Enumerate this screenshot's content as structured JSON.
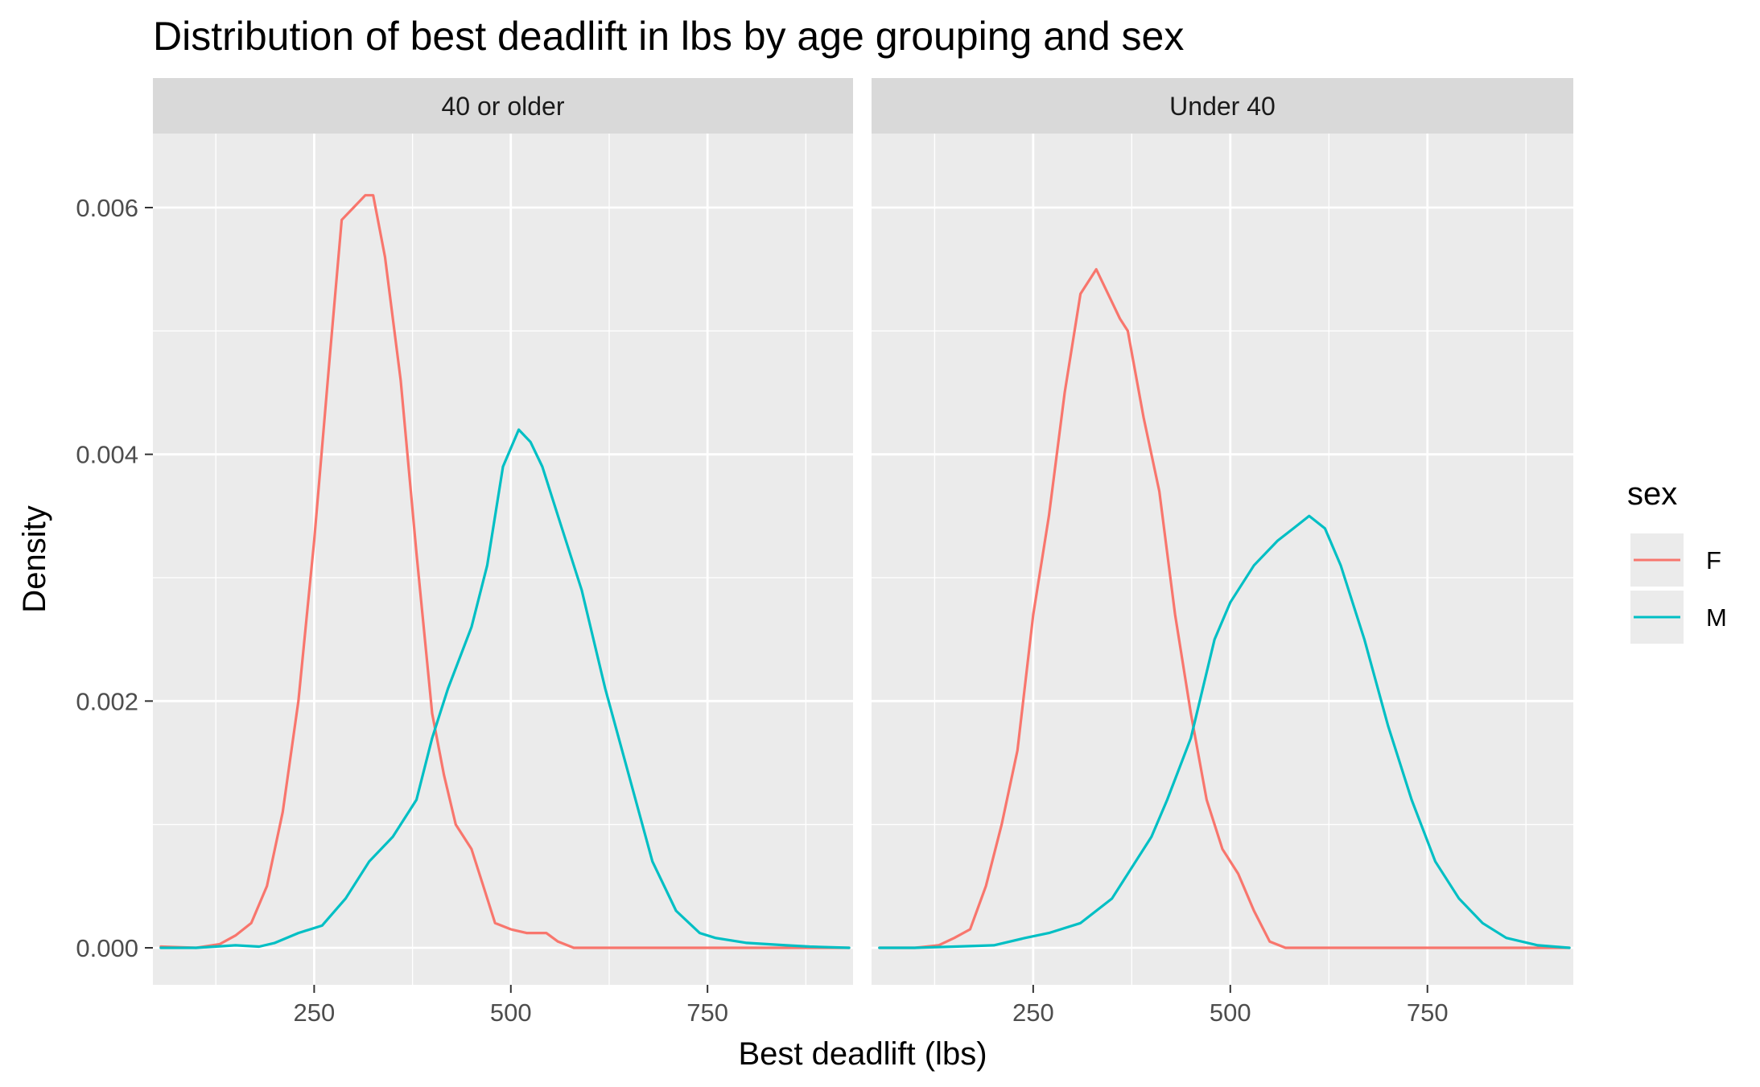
{
  "chart_data": {
    "type": "line",
    "subtype": "density",
    "title": "Distribution of best deadlift in lbs by age grouping and sex",
    "xlabel": "Best deadlift (lbs)",
    "ylabel": "Density",
    "xlim": [
      45,
      935
    ],
    "ylim": [
      -0.0003,
      0.0066
    ],
    "x_ticks": [
      250,
      500,
      750
    ],
    "x_tick_labels": [
      "250",
      "500",
      "750"
    ],
    "y_ticks": [
      0,
      0.002,
      0.004,
      0.006
    ],
    "y_tick_labels": [
      "0.000",
      "0.002",
      "0.004",
      "0.006"
    ],
    "grid": true,
    "legend": {
      "title": "sex",
      "position": "right",
      "entries": [
        "F",
        "M"
      ]
    },
    "colors": {
      "F": "#F8766D",
      "M": "#00BFC4"
    },
    "facets": [
      {
        "label": "40 or older",
        "series": [
          {
            "name": "F",
            "x": [
              55,
              100,
              130,
              150,
              170,
              190,
              210,
              230,
              250,
              270,
              285,
              300,
              315,
              325,
              340,
              360,
              380,
              400,
              415,
              430,
              450,
              465,
              480,
              500,
              520,
              545,
              560,
              580,
              650,
              750,
              850,
              930
            ],
            "y": [
              1e-05,
              0.0,
              3e-05,
              0.0001,
              0.0002,
              0.0005,
              0.0011,
              0.002,
              0.0033,
              0.0048,
              0.0059,
              0.006,
              0.0061,
              0.0061,
              0.0056,
              0.0046,
              0.0032,
              0.0019,
              0.0014,
              0.001,
              0.0008,
              0.0005,
              0.0002,
              0.00015,
              0.00012,
              0.00012,
              5e-05,
              0.0,
              0.0,
              0.0,
              0.0,
              0.0
            ]
          },
          {
            "name": "M",
            "x": [
              55,
              100,
              150,
              180,
              200,
              230,
              260,
              290,
              320,
              350,
              380,
              400,
              420,
              450,
              470,
              490,
              510,
              525,
              540,
              560,
              590,
              620,
              650,
              680,
              710,
              740,
              760,
              800,
              850,
              880,
              930
            ],
            "y": [
              0.0,
              0.0,
              2e-05,
              1e-05,
              4e-05,
              0.00012,
              0.00018,
              0.0004,
              0.0007,
              0.0009,
              0.0012,
              0.0017,
              0.0021,
              0.0026,
              0.0031,
              0.0039,
              0.0042,
              0.0041,
              0.0039,
              0.0035,
              0.0029,
              0.0021,
              0.0014,
              0.0007,
              0.0003,
              0.00012,
              8e-05,
              4e-05,
              2e-05,
              1e-05,
              0.0
            ]
          }
        ]
      },
      {
        "label": "Under 40",
        "series": [
          {
            "name": "F",
            "x": [
              55,
              100,
              130,
              150,
              170,
              190,
              210,
              230,
              250,
              270,
              290,
              310,
              330,
              345,
              360,
              370,
              390,
              410,
              430,
              450,
              470,
              490,
              510,
              530,
              550,
              570,
              600,
              650,
              750,
              850,
              930
            ],
            "y": [
              0.0,
              0.0,
              2e-05,
              8e-05,
              0.00015,
              0.0005,
              0.001,
              0.0016,
              0.0027,
              0.0035,
              0.0045,
              0.0053,
              0.0055,
              0.0053,
              0.0051,
              0.005,
              0.0043,
              0.0037,
              0.0027,
              0.0019,
              0.0012,
              0.0008,
              0.0006,
              0.0003,
              5e-05,
              0.0,
              0.0,
              0.0,
              0.0,
              0.0,
              0.0
            ]
          },
          {
            "name": "M",
            "x": [
              55,
              100,
              150,
              200,
              240,
              270,
              310,
              350,
              380,
              400,
              420,
              450,
              480,
              500,
              530,
              560,
              580,
              600,
              620,
              640,
              670,
              700,
              730,
              760,
              790,
              820,
              850,
              890,
              930
            ],
            "y": [
              0.0,
              0.0,
              1e-05,
              2e-05,
              8e-05,
              0.00012,
              0.0002,
              0.0004,
              0.0007,
              0.0009,
              0.0012,
              0.0017,
              0.0025,
              0.0028,
              0.0031,
              0.0033,
              0.0034,
              0.0035,
              0.0034,
              0.0031,
              0.0025,
              0.0018,
              0.0012,
              0.0007,
              0.0004,
              0.0002,
              8e-05,
              2e-05,
              0.0
            ]
          }
        ]
      }
    ]
  }
}
